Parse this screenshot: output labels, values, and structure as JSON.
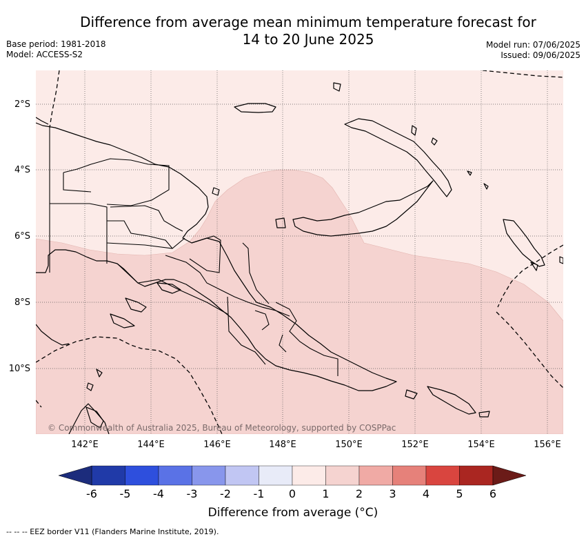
{
  "title_line1": "Difference from average mean minimum temperature forecast for",
  "title_line2": "14 to 20 June 2025",
  "base_period": "Base period: 1981-2018",
  "model": "Model: ACCESS-S2",
  "model_run": "Model run: 07/06/2025",
  "issued": "Issued: 09/06/2025",
  "lat_labels": [
    "2°S",
    "4°S",
    "6°S",
    "8°S",
    "10°S"
  ],
  "lon_labels": [
    "142°E",
    "144°E",
    "146°E",
    "148°E",
    "150°E",
    "152°E",
    "154°E",
    "156°E"
  ],
  "credit": "© Commonwealth of Australia 2025, Bureau of Meteorology, supported by COSPPac",
  "colorbar": {
    "ticks": [
      "-6",
      "-5",
      "-4",
      "-3",
      "-2",
      "-1",
      "0",
      "1",
      "2",
      "3",
      "4",
      "5",
      "6"
    ],
    "colors": [
      "#203aa8",
      "#2e4fdd",
      "#5a72e6",
      "#8896ec",
      "#c1c6f3",
      "#e8ebf8",
      "#fcebe8",
      "#f5d3d0",
      "#f0aaa5",
      "#e6817a",
      "#d9453f",
      "#aa2621"
    ],
    "under_color": "#1c2c7c",
    "over_color": "#6b1b18",
    "label": "Difference from average (°C)"
  },
  "footer": "--  --  -- EEZ border V11 (Flanders Marine Institute, 2019).",
  "map": {
    "region": "Papua New Guinea",
    "lat_range": [
      "1°S",
      "12°S"
    ],
    "lon_range": [
      "140.5°E",
      "156.5°E"
    ],
    "categories_shown": [
      {
        "range": "0 to 1",
        "color": "#fcebe8"
      },
      {
        "range": "1 to 2",
        "color": "#f5d3d0"
      }
    ]
  }
}
